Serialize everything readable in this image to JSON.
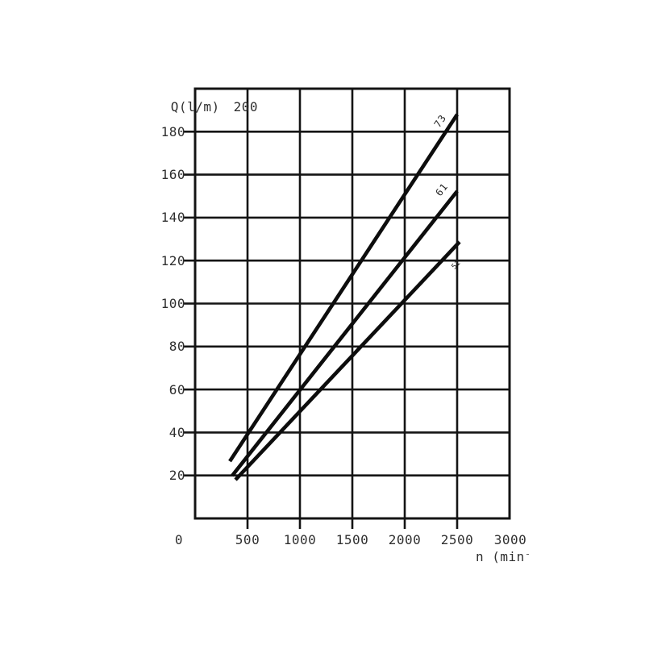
{
  "figure": {
    "background": "#ffffff",
    "line_color": "#0d0d0d",
    "grid_color": "#141414",
    "text_color": "#2f2f2f"
  },
  "chart_data": {
    "type": "line",
    "title": "",
    "ylabel_text": "Q(l/m)",
    "ylabel_top_tick": "200",
    "xlabel_text": "n (min⁻",
    "xlim": [
      0,
      3000
    ],
    "ylim": [
      0,
      200
    ],
    "grid": true,
    "legend_position": "inline-rotated-labels-on-lines",
    "x_ticks": [
      {
        "value": 0,
        "label": "0"
      },
      {
        "value": 500,
        "label": "500"
      },
      {
        "value": 1000,
        "label": "1000"
      },
      {
        "value": 1500,
        "label": "1500"
      },
      {
        "value": 2000,
        "label": "2000"
      },
      {
        "value": 2500,
        "label": "2500"
      },
      {
        "value": 3000,
        "label": "3000"
      }
    ],
    "y_ticks": [
      {
        "value": 20,
        "label": "20"
      },
      {
        "value": 40,
        "label": "40"
      },
      {
        "value": 60,
        "label": "60"
      },
      {
        "value": 80,
        "label": "80"
      },
      {
        "value": 100,
        "label": "100"
      },
      {
        "value": 120,
        "label": "120"
      },
      {
        "value": 140,
        "label": "140"
      },
      {
        "value": 160,
        "label": "160"
      },
      {
        "value": 180,
        "label": "180"
      }
    ],
    "series": [
      {
        "name": "73",
        "x": [
          331,
          2500
        ],
        "y": [
          26.6,
          188
        ],
        "label_anchor_x": 2338,
        "label_anchor_y": 185,
        "label_rotation_deg": -56,
        "label_small": false
      },
      {
        "name": "61",
        "x": [
          354,
          2500
        ],
        "y": [
          19.9,
          152.3
        ],
        "label_anchor_x": 2354,
        "label_anchor_y": 153,
        "label_rotation_deg": -52,
        "label_small": false
      },
      {
        "name": "51",
        "x": [
          385,
          2523
        ],
        "y": [
          18.0,
          128.7
        ],
        "label_anchor_x": 2492,
        "label_anchor_y": 118,
        "label_rotation_deg": -47,
        "label_small": true
      }
    ]
  }
}
